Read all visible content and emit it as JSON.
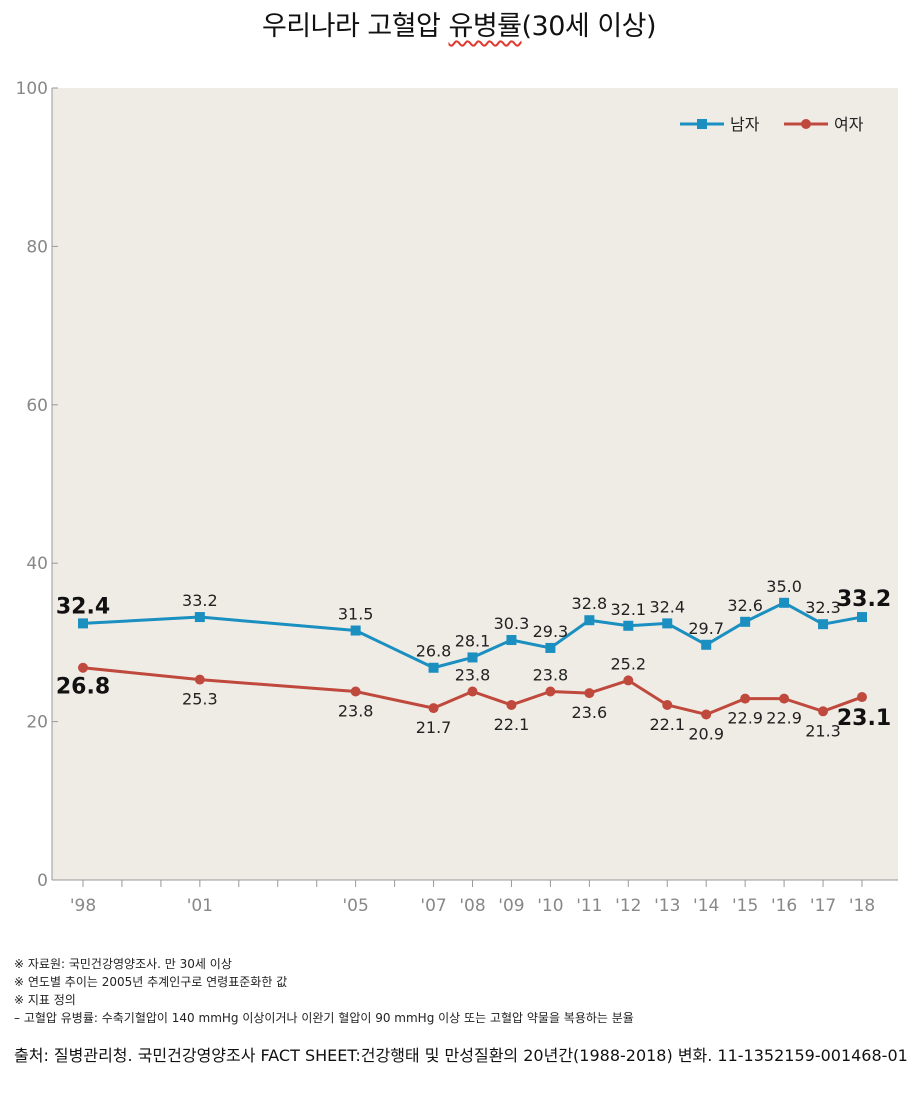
{
  "title_main": "우리나라 고혈압 ",
  "title_underlined": "유병률",
  "title_tail": "(30세 이상)",
  "chart_data": {
    "type": "line",
    "title": "우리나라 고혈압 유병률(30세 이상)",
    "x": [
      "'98",
      "'01",
      "'05",
      "'07",
      "'08",
      "'09",
      "'10",
      "'11",
      "'12",
      "'13",
      "'14",
      "'15",
      "'16",
      "'17",
      "'18"
    ],
    "years": [
      1998,
      2001,
      2005,
      2007,
      2008,
      2009,
      2010,
      2011,
      2012,
      2013,
      2014,
      2015,
      2016,
      2017,
      2018
    ],
    "ylim": [
      0,
      100
    ],
    "yticks": [
      "0",
      "20",
      "40",
      "60",
      "80",
      "100"
    ],
    "grid": false,
    "legend": "top-right",
    "series": [
      {
        "name": "남자",
        "color": "#1a8fc0",
        "marker": "square",
        "values": [
          32.4,
          33.2,
          31.5,
          26.8,
          28.1,
          30.3,
          29.3,
          32.8,
          32.1,
          32.4,
          29.7,
          32.6,
          35.0,
          32.3,
          33.2
        ],
        "labels": [
          "32.4",
          "33.2",
          "31.5",
          "26.8",
          "28.1",
          "30.3",
          "29.3",
          "32.8",
          "32.1",
          "32.4",
          "29.7",
          "32.6",
          "35.0",
          "32.3",
          "33.2"
        ]
      },
      {
        "name": "여자",
        "color": "#c0493d",
        "marker": "circle",
        "values": [
          26.8,
          25.3,
          23.8,
          21.7,
          23.8,
          22.1,
          23.8,
          23.6,
          25.2,
          22.1,
          20.9,
          22.9,
          22.9,
          21.3,
          23.1
        ],
        "labels": [
          "26.8",
          "25.3",
          "23.8",
          "21.7",
          "23.8",
          "22.1",
          "23.8",
          "23.6",
          "25.2",
          "22.1",
          "20.9",
          "22.9",
          "22.9",
          "21.3",
          "23.1"
        ]
      }
    ]
  },
  "notes": [
    "※ 자료원: 국민건강영양조사. 만 30세 이상",
    "※ 연도별 추이는 2005년 추계인구로 연령표준화한 값",
    "※ 지표 정의",
    "– 고혈압 유병률: 수축기혈압이 140 mmHg 이상이거나 이완기 혈압이 90 mmHg 이상 또는 고혈압 약물을 복용하는 분율"
  ],
  "source": "출처: 질병관리청. 국민건강영양조사 FACT SHEET:건강행태 및 만성질환의 20년간(1988-2018) 변화. 11-1352159-001468-01",
  "colors": {
    "plot_background": "#efece6",
    "male": "#1a8fc0",
    "female": "#c0493d"
  }
}
